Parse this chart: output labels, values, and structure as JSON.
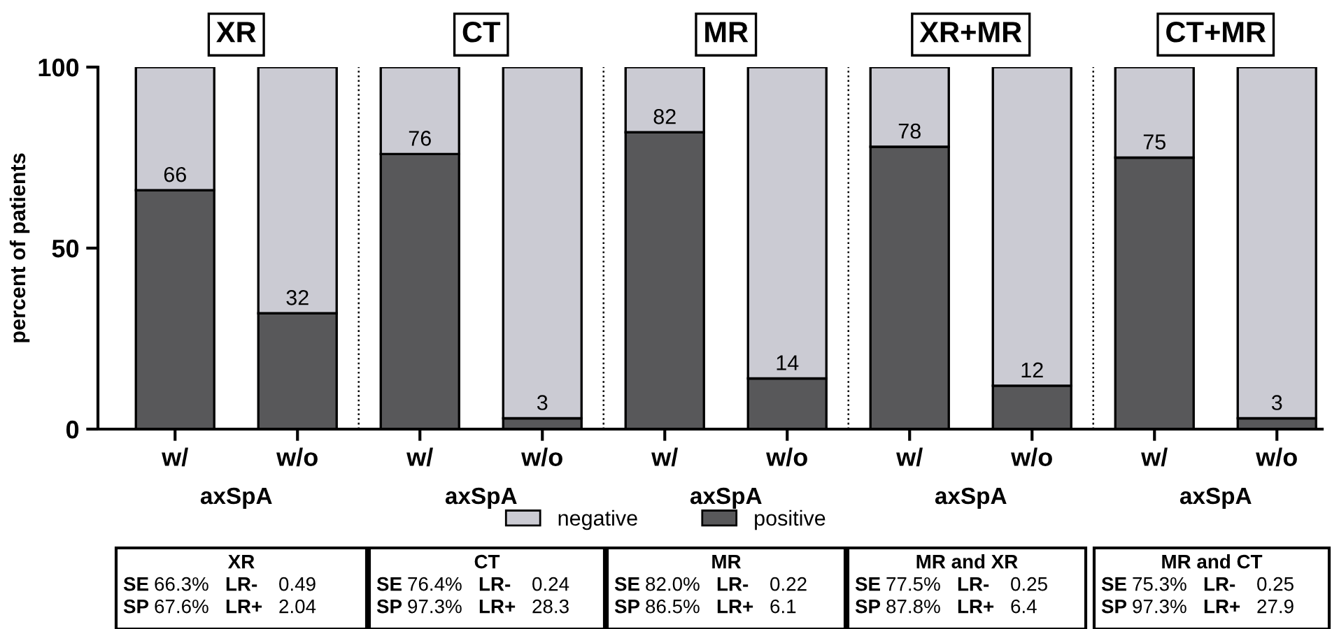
{
  "chart_data": {
    "type": "bar",
    "stacked": true,
    "ylabel": "percent of patients",
    "categories": [
      "w/",
      "w/o",
      "w/",
      "w/o",
      "w/",
      "w/o",
      "w/",
      "w/o",
      "w/",
      "w/o"
    ],
    "series": [
      {
        "name": "positive",
        "color": "#58585a",
        "values": [
          66,
          32,
          76,
          3,
          82,
          14,
          78,
          12,
          75,
          3
        ],
        "value_labels": [
          "66",
          "32",
          "76",
          "3",
          "82",
          "14",
          "78",
          "12",
          "75",
          "3"
        ]
      },
      {
        "name": "negative",
        "color": "#cbcbd3",
        "values": [
          34,
          68,
          24,
          97,
          18,
          86,
          22,
          88,
          25,
          97
        ]
      }
    ],
    "ylim": [
      0,
      100
    ],
    "yticks": [
      0,
      50,
      100
    ],
    "legend": "bottom",
    "grid": false,
    "annotations": [
      "XR",
      "CT",
      "MR",
      "XR+MR",
      "CT+MR",
      "axSpA",
      "axSpA",
      "axSpA",
      "axSpA",
      "axSpA",
      "XR",
      "CT",
      "MR",
      "MR and XR",
      "MR and CT",
      "SE 66.3% LR- 0.49",
      "SP 67.6% LR+ 2.04",
      "SE 76.4% LR- 0.24",
      "SP 97.3% LR+ 28.3",
      "SE 82.0% LR- 0.22",
      "SP 86.5% LR+ 6.1",
      "SE 77.5% LR- 0.25",
      "SP 87.8% LR+ 6.4",
      "SE 75.3% LR- 0.25",
      "SP 97.3% LR+ 27.9"
    ]
  }
}
